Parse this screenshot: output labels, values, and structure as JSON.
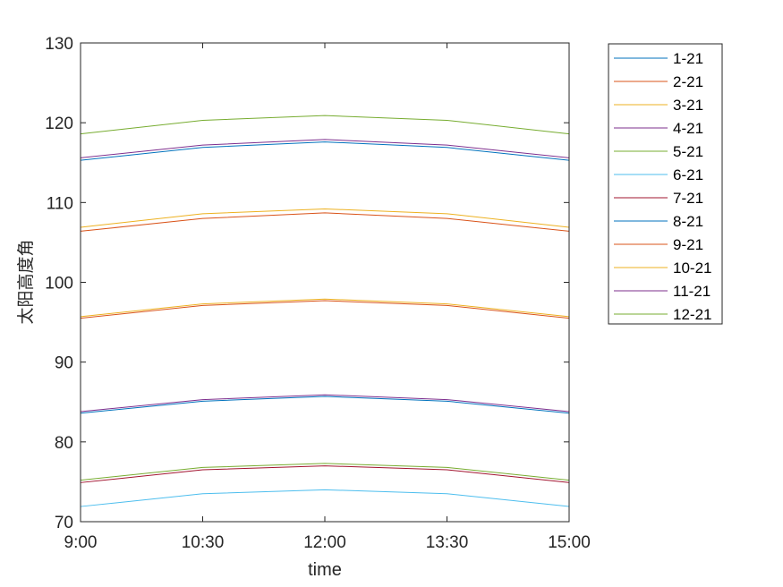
{
  "chart_data": {
    "type": "line",
    "title": "",
    "xlabel": "time",
    "ylabel": "太阳高度角",
    "x_categories": [
      "9:00",
      "10:30",
      "12:00",
      "13:30",
      "15:00"
    ],
    "ylim": [
      70,
      130
    ],
    "yticks": [
      70,
      80,
      90,
      100,
      110,
      120,
      130
    ],
    "grid": false,
    "legend_position": "outside-right-top",
    "series": [
      {
        "name": "1-21",
        "color": "#0072BD",
        "values": [
          115.3,
          116.9,
          117.6,
          116.9,
          115.3
        ]
      },
      {
        "name": "2-21",
        "color": "#D95319",
        "values": [
          106.4,
          108.0,
          108.7,
          108.0,
          106.4
        ]
      },
      {
        "name": "3-21",
        "color": "#EDB120",
        "values": [
          95.7,
          97.3,
          97.9,
          97.3,
          95.7
        ]
      },
      {
        "name": "4-21",
        "color": "#7E2F8E",
        "values": [
          83.8,
          85.3,
          85.9,
          85.3,
          83.8
        ]
      },
      {
        "name": "5-21",
        "color": "#77AC30",
        "values": [
          75.2,
          76.8,
          77.3,
          76.8,
          75.2
        ]
      },
      {
        "name": "6-21",
        "color": "#4DBEEE",
        "values": [
          71.9,
          73.5,
          74.0,
          73.5,
          71.9
        ]
      },
      {
        "name": "7-21",
        "color": "#A2142F",
        "values": [
          74.9,
          76.5,
          77.0,
          76.5,
          74.9
        ]
      },
      {
        "name": "8-21",
        "color": "#0072BD",
        "values": [
          83.6,
          85.1,
          85.7,
          85.1,
          83.6
        ]
      },
      {
        "name": "9-21",
        "color": "#D95319",
        "values": [
          95.5,
          97.1,
          97.7,
          97.1,
          95.5
        ]
      },
      {
        "name": "10-21",
        "color": "#EDB120",
        "values": [
          106.9,
          108.6,
          109.2,
          108.6,
          106.9
        ]
      },
      {
        "name": "11-21",
        "color": "#7E2F8E",
        "values": [
          115.6,
          117.2,
          117.9,
          117.2,
          115.6
        ]
      },
      {
        "name": "12-21",
        "color": "#77AC30",
        "values": [
          118.6,
          120.3,
          120.9,
          120.3,
          118.6
        ]
      }
    ]
  }
}
